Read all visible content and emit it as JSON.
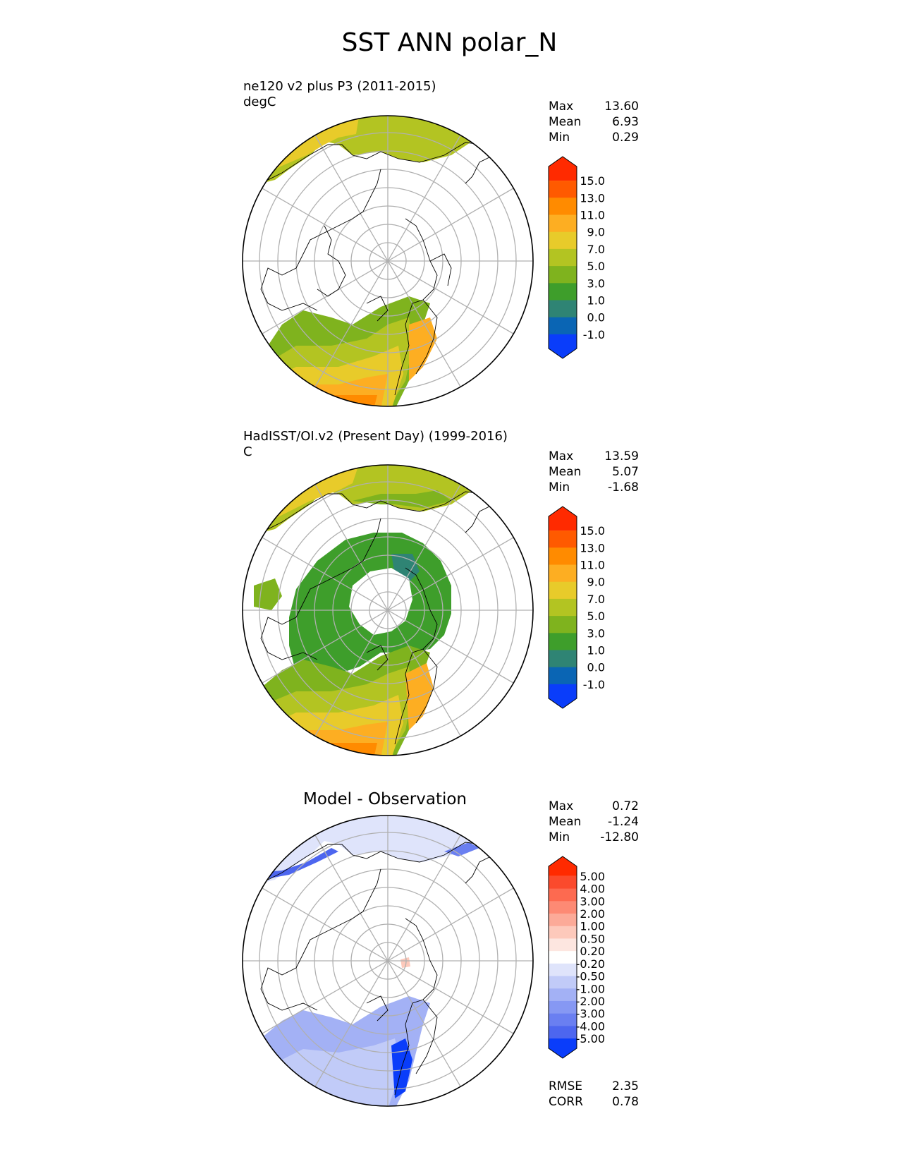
{
  "title": "SST ANN polar_N",
  "panels": [
    {
      "title_line1": "ne120 v2 plus P3 (2011-2015)",
      "title_line2": "degC",
      "stats": {
        "max_label": "Max",
        "max": "13.60",
        "mean_label": "Mean",
        "mean": "6.93",
        "min_label": "Min",
        "min": "0.29"
      },
      "colorbar": {
        "levels": [
          "15.0",
          "13.0",
          "11.0",
          "9.0",
          "7.0",
          "5.0",
          "3.0",
          "1.0",
          "0.0",
          "-1.0"
        ],
        "colors": [
          "#ff2a00",
          "#ff5a00",
          "#ff8b00",
          "#fdae22",
          "#e8cb2a",
          "#b3c422",
          "#7fb31e",
          "#3e9e2b",
          "#2f8474",
          "#0a65b4",
          "#0a3dfa"
        ]
      }
    },
    {
      "title_line1": "HadISST/OI.v2 (Present Day) (1999-2016)",
      "title_line2": "C",
      "stats": {
        "max_label": "Max",
        "max": "13.59",
        "mean_label": "Mean",
        "mean": "5.07",
        "min_label": "Min",
        "min": "-1.68"
      },
      "colorbar": {
        "levels": [
          "15.0",
          "13.0",
          "11.0",
          "9.0",
          "7.0",
          "5.0",
          "3.0",
          "1.0",
          "0.0",
          "-1.0"
        ],
        "colors": [
          "#ff2a00",
          "#ff5a00",
          "#ff8b00",
          "#fdae22",
          "#e8cb2a",
          "#b3c422",
          "#7fb31e",
          "#3e9e2b",
          "#2f8474",
          "#0a65b4",
          "#0a3dfa"
        ]
      }
    },
    {
      "title_line1": "Model - Observation",
      "stats": {
        "max_label": "Max",
        "max": "0.72",
        "mean_label": "Mean",
        "mean": "-1.24",
        "min_label": "Min",
        "min": "-12.80"
      },
      "colorbar": {
        "levels": [
          "5.00",
          "4.00",
          "3.00",
          "2.00",
          "1.00",
          "0.50",
          "0.20",
          "-0.20",
          "-0.50",
          "-1.00",
          "-2.00",
          "-3.00",
          "-4.00",
          "-5.00"
        ],
        "colors": [
          "#ff2a00",
          "#fb4a2c",
          "#fd6a50",
          "#fd8a74",
          "#fcaa98",
          "#fdc9bb",
          "#fde6e0",
          "#ffffff",
          "#dfe4fb",
          "#c1cbf8",
          "#a3b1f5",
          "#8698f3",
          "#6a7ff1",
          "#4d66ef",
          "#0a3dfa"
        ]
      },
      "metrics": {
        "rmse_label": "RMSE",
        "rmse": "2.35",
        "corr_label": "CORR",
        "corr": "0.78"
      }
    }
  ]
}
